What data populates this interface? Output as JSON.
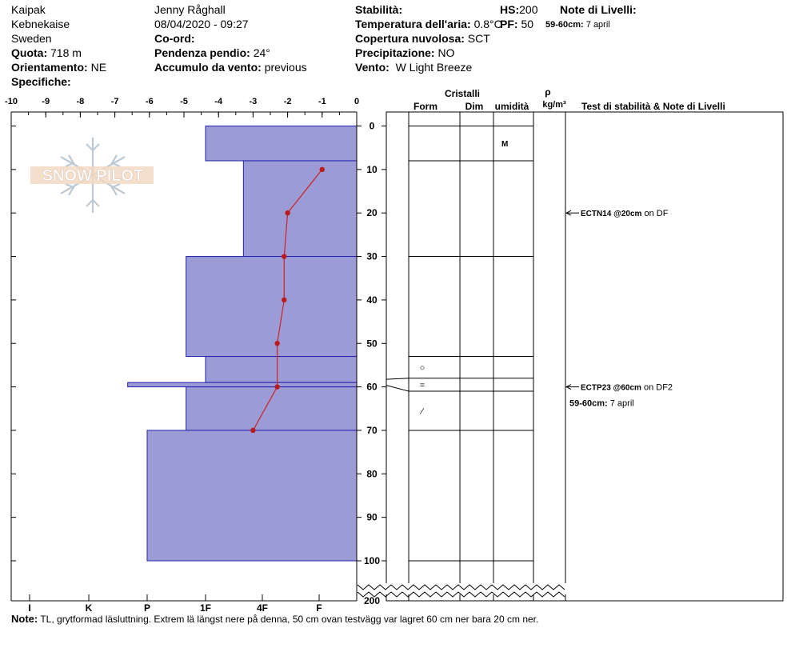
{
  "header": {
    "location": "Kaipak",
    "region": "Kebnekaise",
    "country": "Sweden",
    "elevation_label": "Quota:",
    "elevation": "718 m",
    "aspect_label": "Orientamento:",
    "aspect": "NE",
    "specifics_label": "Specifiche:",
    "observer": "Jenny Råghall",
    "datetime": "08/04/2020 - 09:27",
    "coord_label": "Co-ord:",
    "slope_label": "Pendenza pendio:",
    "slope": "24°",
    "wind_loading_label": "Accumulo da vento:",
    "wind_loading": "previous",
    "stability_label": "Stabilità:",
    "air_temp_label": "Temperatura dell'aria:",
    "air_temp": "0.8°C",
    "cloud_label": "Copertura nuvolosa:",
    "cloud": "SCT",
    "precip_label": "Precipitazione:",
    "precip": "NO",
    "wind_label": "Vento:",
    "wind": "W Light Breeze",
    "hs_label": "HS:",
    "hs": "200",
    "pf_label": "PF:",
    "pf": "50",
    "layer_notes_label": "Note di Livelli:",
    "layer_note_range": "59-60cm:",
    "layer_note_text": "7 april"
  },
  "table_headers": {
    "crystals": "Cristalli",
    "form": "Form",
    "dim": "Dim",
    "moisture": "umidità",
    "rho": "ρ",
    "density_unit": "kg/m³",
    "tests": "Test di stabilità & Note di Livelli"
  },
  "logo_text": "SNOW PILOT",
  "chart_data": {
    "type": "snow-profile",
    "temperature_axis": {
      "ticks": [
        -10,
        -9,
        -8,
        -7,
        -6,
        -5,
        -4,
        -3,
        -2,
        -1,
        0
      ],
      "range": [
        -10,
        0
      ]
    },
    "hardness_axis": {
      "labels": [
        "I",
        "K",
        "P",
        "1F",
        "4F",
        "F"
      ]
    },
    "depth_axis": {
      "ticks": [
        0,
        10,
        20,
        30,
        40,
        50,
        60,
        70,
        80,
        90,
        100
      ],
      "bottom_label": "200",
      "range_cm": [
        0,
        100
      ]
    },
    "layers": [
      {
        "top": 0,
        "bottom": 8,
        "hardness": "1F"
      },
      {
        "top": 8,
        "bottom": 30,
        "hardness": "4F+"
      },
      {
        "top": 30,
        "bottom": 53,
        "hardness": "1F+"
      },
      {
        "top": 53,
        "bottom": 59,
        "hardness": "1F"
      },
      {
        "top": 59,
        "bottom": 60,
        "hardness": "P+"
      },
      {
        "top": 60,
        "bottom": 70,
        "hardness": "1F+"
      },
      {
        "top": 70,
        "bottom": 100,
        "hardness": "P"
      }
    ],
    "temperature_profile": [
      {
        "depth": 10,
        "temp": -1.0
      },
      {
        "depth": 20,
        "temp": -2.0
      },
      {
        "depth": 30,
        "temp": -2.1
      },
      {
        "depth": 40,
        "temp": -2.1
      },
      {
        "depth": 50,
        "temp": -2.3
      },
      {
        "depth": 60,
        "temp": -2.3
      },
      {
        "depth": 70,
        "temp": -3.0
      }
    ],
    "table_rows": [
      {
        "top": 0,
        "bottom": 8,
        "moisture": "M",
        "symbol": ""
      },
      {
        "top": 8,
        "bottom": 30,
        "moisture": "",
        "symbol": ""
      },
      {
        "top": 30,
        "bottom": 53,
        "moisture": "",
        "symbol": ""
      },
      {
        "top": 53,
        "bottom": 58,
        "moisture": "",
        "symbol": "○"
      },
      {
        "top": 58,
        "bottom": 61,
        "moisture": "",
        "symbol": "="
      },
      {
        "top": 61,
        "bottom": 70,
        "moisture": "",
        "symbol": "⁄"
      },
      {
        "top": 70,
        "bottom": 100,
        "moisture": "",
        "symbol": ""
      }
    ],
    "stability_tests": [
      {
        "depth": 20,
        "result": "ECTN14 @20cm",
        "note": "on DF"
      },
      {
        "depth": 60,
        "result": "ECTP23 @60cm",
        "note": "on DF2",
        "sub_range": "59-60cm:",
        "sub_text": "7 april"
      }
    ]
  },
  "note": {
    "label": "Note:",
    "text": "TL, grytformad läsluttning. Extrem lä längst nere på denna, 50 cm ovan testvägg var lagret 60 cm ner bara 20 cm ner."
  }
}
